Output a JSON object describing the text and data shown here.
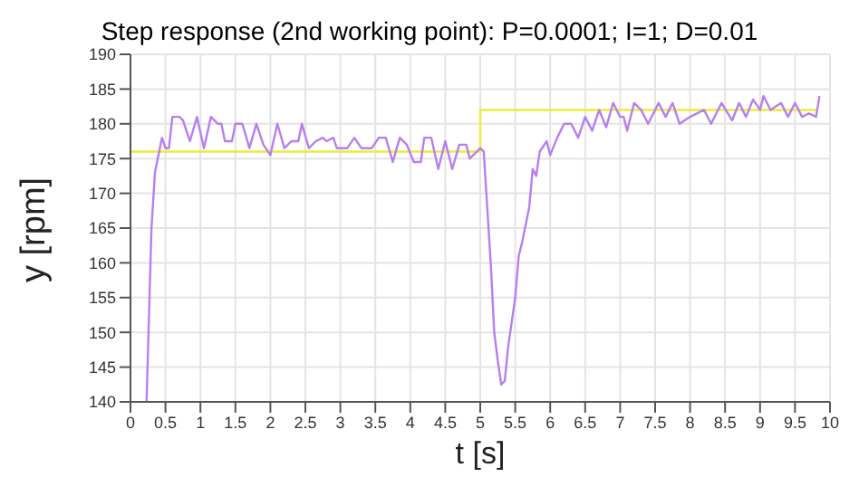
{
  "chart_data": {
    "type": "line",
    "title": "Step response (2nd working point): P=0.0001; I=1; D=0.01",
    "xlabel": "t [s]",
    "ylabel": "y [rpm]",
    "xlim": [
      0,
      10
    ],
    "xticks": [
      0,
      0.5,
      1,
      1.5,
      2,
      2.5,
      3,
      3.5,
      4,
      4.5,
      5,
      5.5,
      6,
      6.5,
      7,
      7.5,
      8,
      8.5,
      9,
      9.5,
      10
    ],
    "ylim": [
      140,
      190
    ],
    "yticks": [
      140,
      145,
      150,
      155,
      160,
      165,
      170,
      175,
      180,
      185,
      190
    ],
    "grid": true,
    "legend": false,
    "marker": "none",
    "line_style": "solid",
    "series": [
      {
        "color": "#ecec3c",
        "x": [
          0,
          5,
          5,
          9.8
        ],
        "values": [
          176,
          176,
          182,
          182
        ]
      },
      {
        "color": "#b77ff0",
        "x": [
          0.23,
          0.3,
          0.35,
          0.45,
          0.5,
          0.55,
          0.6,
          0.7,
          0.75,
          0.85,
          0.95,
          1.05,
          1.15,
          1.25,
          1.3,
          1.35,
          1.45,
          1.5,
          1.6,
          1.7,
          1.8,
          1.9,
          2.0,
          2.1,
          2.2,
          2.3,
          2.4,
          2.45,
          2.55,
          2.65,
          2.75,
          2.8,
          2.9,
          2.95,
          3.1,
          3.2,
          3.3,
          3.45,
          3.55,
          3.65,
          3.75,
          3.85,
          3.95,
          4.05,
          4.15,
          4.2,
          4.3,
          4.4,
          4.5,
          4.6,
          4.7,
          4.8,
          4.85,
          4.95,
          5.0,
          5.05,
          5.1,
          5.15,
          5.2,
          5.25,
          5.3,
          5.35,
          5.4,
          5.5,
          5.55,
          5.6,
          5.7,
          5.75,
          5.8,
          5.85,
          5.95,
          6.0,
          6.1,
          6.2,
          6.3,
          6.4,
          6.5,
          6.6,
          6.7,
          6.8,
          6.9,
          7.0,
          7.05,
          7.1,
          7.2,
          7.3,
          7.4,
          7.55,
          7.65,
          7.75,
          7.85,
          8.0,
          8.2,
          8.3,
          8.45,
          8.6,
          8.7,
          8.8,
          8.9,
          9.0,
          9.05,
          9.15,
          9.3,
          9.4,
          9.5,
          9.6,
          9.7,
          9.8,
          9.85
        ],
        "values": [
          140,
          165,
          173,
          178,
          176.5,
          176.5,
          181,
          181,
          180.5,
          177.5,
          181,
          176.5,
          181,
          180,
          180,
          177.5,
          177.5,
          180,
          180,
          176.5,
          180,
          177,
          175.5,
          180,
          176.5,
          177.5,
          177.5,
          180,
          176.5,
          177.5,
          178,
          177.5,
          178,
          176.5,
          176.5,
          178,
          176.5,
          176.5,
          178,
          178,
          174.5,
          178,
          177,
          174.5,
          174.5,
          178,
          178,
          173.5,
          177.5,
          173.5,
          177,
          177,
          175,
          176,
          176.5,
          176,
          168,
          160,
          150,
          146,
          142.5,
          143,
          148,
          155,
          161,
          163,
          168,
          173.5,
          172.5,
          176,
          177.5,
          175.5,
          178,
          180,
          180,
          178,
          181,
          179,
          182,
          179.5,
          183,
          181,
          181,
          179,
          183,
          182,
          180,
          183,
          181,
          183,
          180,
          181,
          182,
          180,
          183,
          180.5,
          183,
          181,
          183.5,
          182,
          184,
          182,
          183,
          181,
          183,
          181,
          181.5,
          181,
          184
        ]
      }
    ]
  }
}
